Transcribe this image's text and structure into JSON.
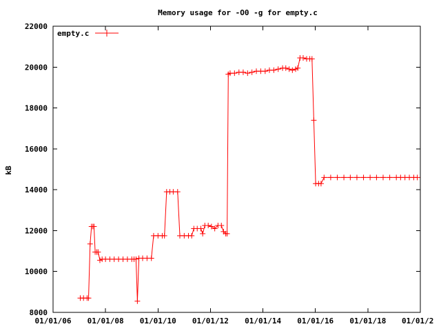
{
  "chart_data": {
    "type": "line",
    "title": "Memory usage for -O0 -g for empty.c",
    "ylabel": "kB",
    "xlabel": "",
    "x_scale": "date",
    "xlim": [
      "2006-01-01",
      "2020-01-01"
    ],
    "ylim": [
      8000,
      22000
    ],
    "x_ticks": [
      "01/01/06",
      "01/01/08",
      "01/01/10",
      "01/01/12",
      "01/01/14",
      "01/01/16",
      "01/01/18",
      "01/01/2"
    ],
    "y_ticks": [
      "8000",
      "10000",
      "12000",
      "14000",
      "16000",
      "18000",
      "20000",
      "22000"
    ],
    "legend_position": "top-left",
    "series": [
      {
        "name": "empty.c",
        "color": "#ff0000",
        "marker": "plus",
        "points": [
          [
            "2007-01-15",
            8700
          ],
          [
            "2007-03-01",
            8700
          ],
          [
            "2007-04-20",
            8700
          ],
          [
            "2007-05-10",
            8700
          ],
          [
            "2007-06-01",
            11350
          ],
          [
            "2007-06-20",
            12200
          ],
          [
            "2007-07-10",
            12200
          ],
          [
            "2007-07-25",
            12200
          ],
          [
            "2007-08-10",
            10950
          ],
          [
            "2007-09-01",
            10950
          ],
          [
            "2007-09-20",
            10950
          ],
          [
            "2007-10-15",
            10550
          ],
          [
            "2007-11-15",
            10600
          ],
          [
            "2008-01-01",
            10600
          ],
          [
            "2008-03-01",
            10600
          ],
          [
            "2008-05-01",
            10600
          ],
          [
            "2008-07-01",
            10600
          ],
          [
            "2008-09-01",
            10600
          ],
          [
            "2008-11-01",
            10600
          ],
          [
            "2009-01-01",
            10600
          ],
          [
            "2009-02-01",
            10600
          ],
          [
            "2009-03-01",
            10600
          ],
          [
            "2009-03-20",
            8550
          ],
          [
            "2009-04-10",
            10650
          ],
          [
            "2009-06-01",
            10650
          ],
          [
            "2009-08-01",
            10650
          ],
          [
            "2009-10-01",
            10650
          ],
          [
            "2009-11-01",
            11750
          ],
          [
            "2010-01-01",
            11750
          ],
          [
            "2010-03-01",
            11750
          ],
          [
            "2010-04-01",
            11750
          ],
          [
            "2010-05-01",
            13900
          ],
          [
            "2010-06-15",
            13900
          ],
          [
            "2010-08-01",
            13900
          ],
          [
            "2010-10-01",
            13900
          ],
          [
            "2010-11-01",
            11750
          ],
          [
            "2011-01-01",
            11750
          ],
          [
            "2011-03-01",
            11750
          ],
          [
            "2011-04-15",
            11750
          ],
          [
            "2011-05-15",
            12100
          ],
          [
            "2011-07-01",
            12100
          ],
          [
            "2011-08-20",
            12100
          ],
          [
            "2011-09-15",
            11850
          ],
          [
            "2011-10-15",
            12250
          ],
          [
            "2011-12-01",
            12250
          ],
          [
            "2012-01-15",
            12200
          ],
          [
            "2012-03-01",
            12100
          ],
          [
            "2012-04-15",
            12250
          ],
          [
            "2012-06-01",
            12250
          ],
          [
            "2012-07-01",
            11950
          ],
          [
            "2012-08-01",
            11850
          ],
          [
            "2012-08-20",
            11850
          ],
          [
            "2012-09-05",
            19650
          ],
          [
            "2012-10-01",
            19700
          ],
          [
            "2012-12-01",
            19700
          ],
          [
            "2013-02-01",
            19750
          ],
          [
            "2013-04-01",
            19750
          ],
          [
            "2013-06-01",
            19700
          ],
          [
            "2013-08-01",
            19750
          ],
          [
            "2013-10-01",
            19800
          ],
          [
            "2013-12-01",
            19800
          ],
          [
            "2014-02-01",
            19800
          ],
          [
            "2014-04-01",
            19850
          ],
          [
            "2014-06-01",
            19850
          ],
          [
            "2014-08-01",
            19900
          ],
          [
            "2014-10-01",
            19950
          ],
          [
            "2014-11-15",
            19950
          ],
          [
            "2015-01-01",
            19900
          ],
          [
            "2015-02-15",
            19850
          ],
          [
            "2015-04-01",
            19900
          ],
          [
            "2015-05-01",
            19950
          ],
          [
            "2015-06-01",
            20450
          ],
          [
            "2015-07-15",
            20450
          ],
          [
            "2015-09-01",
            20400
          ],
          [
            "2015-10-15",
            20400
          ],
          [
            "2015-11-15",
            20400
          ],
          [
            "2015-12-10",
            17400
          ],
          [
            "2016-01-05",
            14300
          ],
          [
            "2016-02-15",
            14300
          ],
          [
            "2016-03-20",
            14300
          ],
          [
            "2016-05-01",
            14600
          ],
          [
            "2016-08-01",
            14600
          ],
          [
            "2016-11-01",
            14600
          ],
          [
            "2017-02-01",
            14600
          ],
          [
            "2017-05-01",
            14600
          ],
          [
            "2017-08-01",
            14600
          ],
          [
            "2017-11-01",
            14600
          ],
          [
            "2018-02-01",
            14600
          ],
          [
            "2018-05-01",
            14600
          ],
          [
            "2018-08-01",
            14600
          ],
          [
            "2018-11-01",
            14600
          ],
          [
            "2019-02-01",
            14600
          ],
          [
            "2019-04-01",
            14600
          ],
          [
            "2019-06-01",
            14600
          ],
          [
            "2019-08-01",
            14600
          ],
          [
            "2019-10-01",
            14600
          ],
          [
            "2019-11-20",
            14600
          ]
        ]
      }
    ]
  }
}
